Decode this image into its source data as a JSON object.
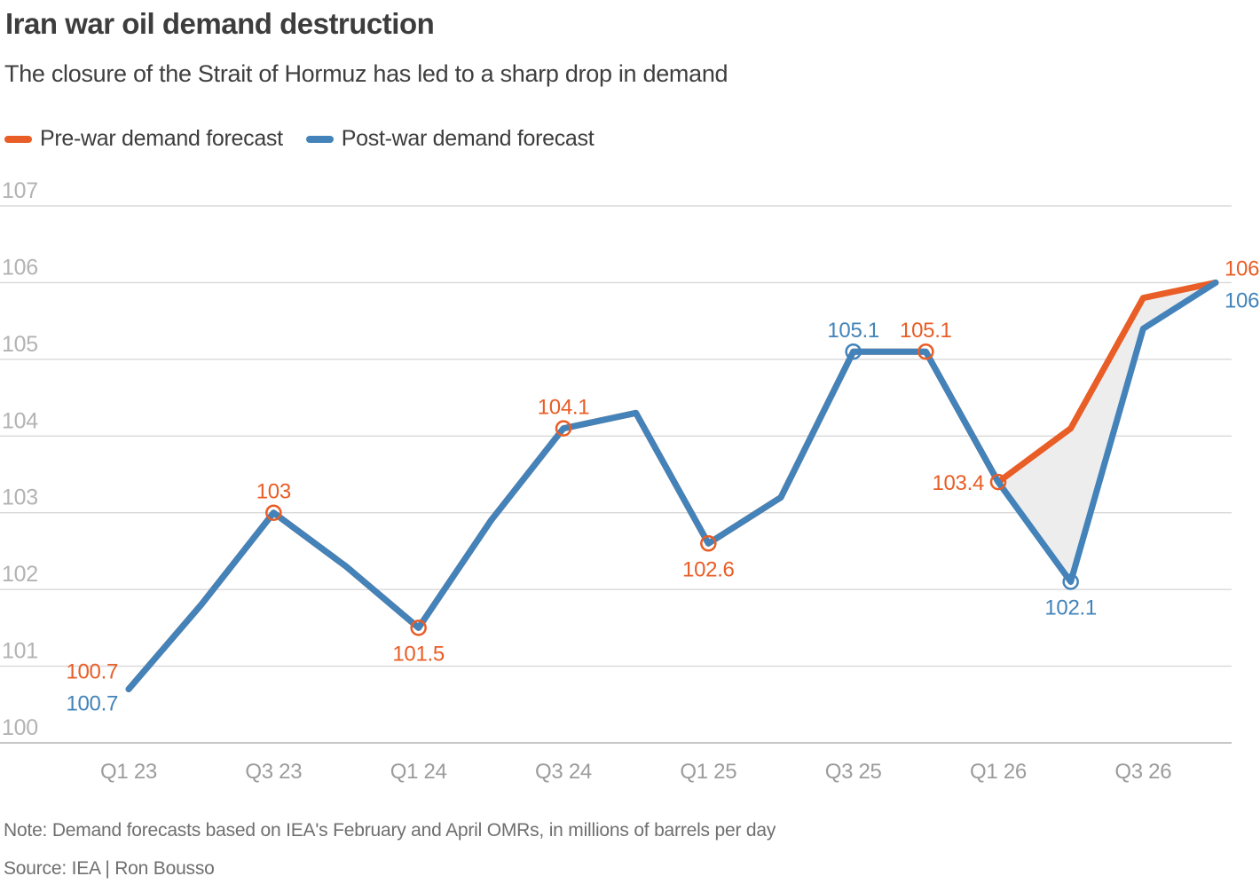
{
  "header": {
    "title": "Iran war oil demand destruction",
    "subtitle": "The closure of the Strait of Hormuz has led to a sharp drop in demand"
  },
  "legend": [
    {
      "label": "Pre-war demand forecast",
      "color": "#E95D26"
    },
    {
      "label": "Post-war demand forecast",
      "color": "#4383B9"
    }
  ],
  "footer": {
    "note": "Note: Demand forecasts based on IEA's February and April OMRs, in millions of barrels per day",
    "source": "Source: IEA | Ron Bousso"
  },
  "chart_data": {
    "type": "line",
    "title": "Iran war oil demand destruction",
    "unit": "millions of barrels per day",
    "categories": [
      "Q1 23",
      "Q2 23",
      "Q3 23",
      "Q4 23",
      "Q1 24",
      "Q2 24",
      "Q3 24",
      "Q4 24",
      "Q1 25",
      "Q2 25",
      "Q3 25",
      "Q4 25",
      "Q1 26",
      "Q2 26",
      "Q3 26",
      "Q4 26"
    ],
    "x_tick_labels": [
      "Q1 23",
      "Q3 23",
      "Q1 24",
      "Q3 24",
      "Q1 25",
      "Q3 25",
      "Q1 26",
      "Q3 26"
    ],
    "y_ticks": [
      100,
      101,
      102,
      103,
      104,
      105,
      106,
      107
    ],
    "ylim": [
      100,
      107
    ],
    "grid": "horizontal",
    "legend_position": "top-left",
    "series": [
      {
        "name": "Pre-war demand forecast",
        "color": "#E95D26",
        "values": [
          100.7,
          101.8,
          103,
          102.3,
          101.5,
          102.9,
          104.1,
          104.3,
          102.6,
          103.2,
          105.1,
          105.1,
          103.4,
          104.1,
          105.8,
          106
        ]
      },
      {
        "name": "Post-war demand forecast",
        "color": "#4383B9",
        "values": [
          100.7,
          101.8,
          103,
          102.3,
          101.5,
          102.9,
          104.1,
          104.3,
          102.6,
          103.2,
          105.1,
          105.1,
          103.4,
          102.1,
          105.4,
          106
        ]
      }
    ],
    "diff_fill": {
      "from_index": 12,
      "color": "#EDEDED"
    },
    "point_labels": [
      {
        "series": 0,
        "index": 0,
        "text": "100.7",
        "position": "left-above",
        "marker": false
      },
      {
        "series": 1,
        "index": 0,
        "text": "100.7",
        "position": "left-below",
        "marker": false
      },
      {
        "series": 0,
        "index": 2,
        "text": "103",
        "position": "above",
        "marker": true
      },
      {
        "series": 0,
        "index": 4,
        "text": "101.5",
        "position": "below",
        "marker": true
      },
      {
        "series": 0,
        "index": 6,
        "text": "104.1",
        "position": "above",
        "marker": true
      },
      {
        "series": 0,
        "index": 8,
        "text": "102.6",
        "position": "below",
        "marker": true
      },
      {
        "series": 1,
        "index": 10,
        "text": "105.1",
        "position": "above",
        "marker": true
      },
      {
        "series": 0,
        "index": 11,
        "text": "105.1",
        "position": "above",
        "marker": true
      },
      {
        "series": 0,
        "index": 12,
        "text": "103.4",
        "position": "left",
        "marker": true
      },
      {
        "series": 1,
        "index": 13,
        "text": "102.1",
        "position": "below",
        "marker": true
      },
      {
        "series": 0,
        "index": 15,
        "text": "106",
        "position": "right-above",
        "marker": false
      },
      {
        "series": 1,
        "index": 15,
        "text": "106",
        "position": "right-below",
        "marker": false
      }
    ]
  }
}
